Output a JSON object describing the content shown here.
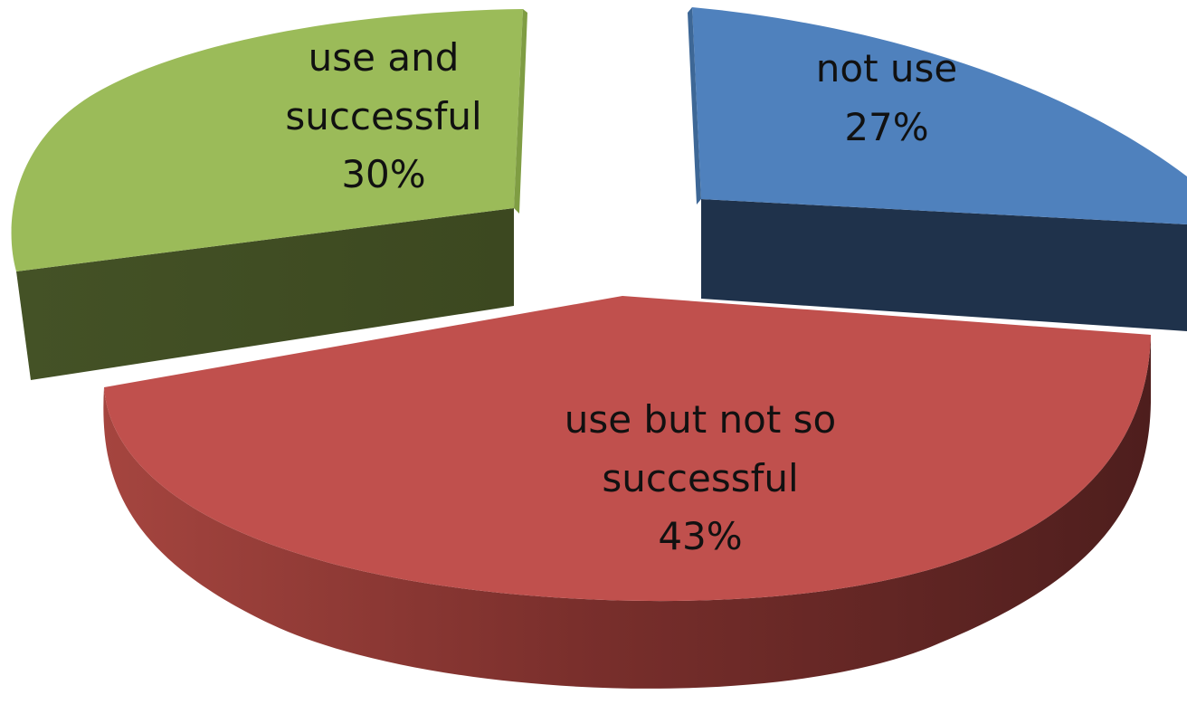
{
  "chart_data": {
    "type": "pie",
    "style": "3d-exploded",
    "title": "",
    "slices": [
      {
        "label_lines": [
          "use and",
          "successful"
        ],
        "value": 30,
        "pct_text": "30%",
        "color_top": "#9bbb59",
        "color_side": "#3f4b22"
      },
      {
        "label_lines": [
          "not use"
        ],
        "value": 27,
        "pct_text": "27%",
        "color_top": "#4f81bd",
        "color_side": "#1f324b"
      },
      {
        "label_lines": [
          "use but not so",
          "successful"
        ],
        "value": 43,
        "pct_text": "43%",
        "color_top": "#c0504d",
        "color_side": "#7a2f2c",
        "color_side_dark": "#4e1e1d"
      }
    ]
  }
}
